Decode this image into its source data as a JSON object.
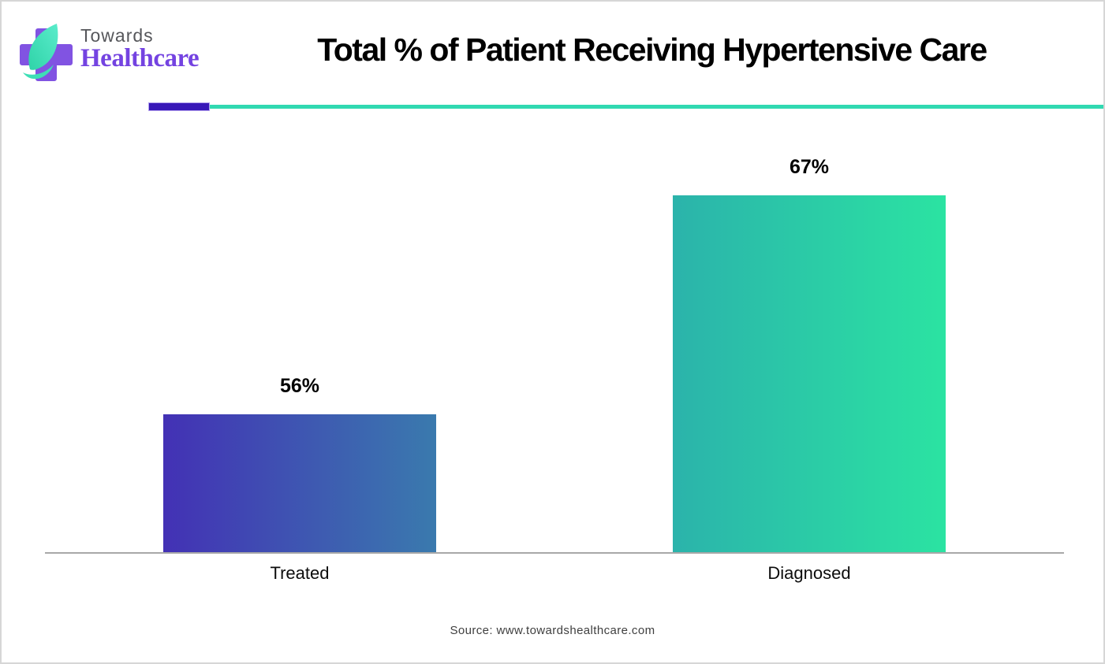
{
  "header": {
    "logo": {
      "line1": "Towards",
      "line2": "Healthcare"
    },
    "title": "Total % of Patient Receiving Hypertensive Care"
  },
  "divider": {
    "accent_color": "#3818b8",
    "line_color": "#31d9b1"
  },
  "chart_data": {
    "type": "bar",
    "title": "Total % of Patient Receiving Hypertensive Care",
    "categories": [
      "Treated",
      "Diagnosed"
    ],
    "values": [
      56,
      67
    ],
    "value_labels": [
      "56%",
      "67%"
    ],
    "unit": "%",
    "ylim": [
      49,
      70
    ],
    "grid": false,
    "legend": false,
    "axis_line_color": "#a8a8a8",
    "bar_gradients": [
      [
        "#4331b5",
        "#3a7aae"
      ],
      [
        "#2bb3ab",
        "#2be3a2"
      ]
    ]
  },
  "footer": {
    "source": "Source: www.towardshealthcare.com"
  }
}
